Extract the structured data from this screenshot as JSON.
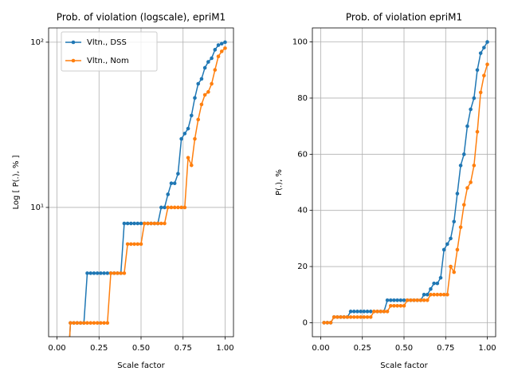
{
  "chart_data": [
    {
      "type": "line",
      "title": "Prob. of violation (logscale), epriM1",
      "x_label": "Scale factor",
      "y_label": "Log [ P(.), % ]",
      "log_scale": true,
      "grid": true,
      "legend": "upper left",
      "x": [
        0.02,
        0.04,
        0.06,
        0.08,
        0.1,
        0.12,
        0.14,
        0.16,
        0.18,
        0.2,
        0.22,
        0.24,
        0.26,
        0.28,
        0.3,
        0.32,
        0.34,
        0.36,
        0.38,
        0.4,
        0.42,
        0.44,
        0.46,
        0.48,
        0.5,
        0.52,
        0.54,
        0.56,
        0.58,
        0.6,
        0.62,
        0.64,
        0.66,
        0.68,
        0.7,
        0.72,
        0.74,
        0.76,
        0.78,
        0.8,
        0.82,
        0.84,
        0.86,
        0.88,
        0.9,
        0.92,
        0.94,
        0.96,
        0.98,
        1.0
      ],
      "series": [
        {
          "name": "Vltn., DSS",
          "color": "#1f77b4",
          "values": [
            0,
            0,
            0,
            2,
            2,
            2,
            2,
            2,
            4,
            4,
            4,
            4,
            4,
            4,
            4,
            4,
            4,
            4,
            4,
            8,
            8,
            8,
            8,
            8,
            8,
            8,
            8,
            8,
            8,
            8,
            10,
            10,
            12,
            14,
            14,
            16,
            26,
            28,
            30,
            36,
            46,
            56,
            60,
            70,
            76,
            80,
            90,
            96,
            98,
            100
          ]
        },
        {
          "name": "Vltn., Nom",
          "color": "#ff7f0e",
          "values": [
            0,
            0,
            0,
            2,
            2,
            2,
            2,
            2,
            2,
            2,
            2,
            2,
            2,
            2,
            2,
            4,
            4,
            4,
            4,
            4,
            6,
            6,
            6,
            6,
            6,
            8,
            8,
            8,
            8,
            8,
            8,
            8,
            10,
            10,
            10,
            10,
            10,
            10,
            20,
            18,
            26,
            34,
            42,
            48,
            50,
            56,
            68,
            82,
            88,
            92
          ]
        }
      ],
      "xlim": [
        -0.05,
        1.05
      ],
      "xticks": [
        {
          "value": 0,
          "label": "0.00"
        },
        {
          "value": 0.25,
          "label": "0.25"
        },
        {
          "value": 0.5,
          "label": "0.50"
        },
        {
          "value": 0.75,
          "label": "0.75"
        },
        {
          "value": 1,
          "label": "1.00"
        }
      ],
      "ylim": [
        1.65,
        122
      ],
      "yticks": [
        {
          "value": 10,
          "label": "10¹"
        },
        {
          "value": 100,
          "label": "10²"
        }
      ]
    },
    {
      "type": "line",
      "title": "Prob. of violation epriM1",
      "x_label": "Scale factor",
      "y_label": "P(.), %",
      "log_scale": false,
      "grid": true,
      "x": [
        0.02,
        0.04,
        0.06,
        0.08,
        0.1,
        0.12,
        0.14,
        0.16,
        0.18,
        0.2,
        0.22,
        0.24,
        0.26,
        0.28,
        0.3,
        0.32,
        0.34,
        0.36,
        0.38,
        0.4,
        0.42,
        0.44,
        0.46,
        0.48,
        0.5,
        0.52,
        0.54,
        0.56,
        0.58,
        0.6,
        0.62,
        0.64,
        0.66,
        0.68,
        0.7,
        0.72,
        0.74,
        0.76,
        0.78,
        0.8,
        0.82,
        0.84,
        0.86,
        0.88,
        0.9,
        0.92,
        0.94,
        0.96,
        0.98,
        1.0
      ],
      "series": [
        {
          "name": "Vltn., DSS",
          "color": "#1f77b4",
          "values": [
            0,
            0,
            0,
            2,
            2,
            2,
            2,
            2,
            4,
            4,
            4,
            4,
            4,
            4,
            4,
            4,
            4,
            4,
            4,
            8,
            8,
            8,
            8,
            8,
            8,
            8,
            8,
            8,
            8,
            8,
            10,
            10,
            12,
            14,
            14,
            16,
            26,
            28,
            30,
            36,
            46,
            56,
            60,
            70,
            76,
            80,
            90,
            96,
            98,
            100
          ]
        },
        {
          "name": "Vltn., Nom",
          "color": "#ff7f0e",
          "values": [
            0,
            0,
            0,
            2,
            2,
            2,
            2,
            2,
            2,
            2,
            2,
            2,
            2,
            2,
            2,
            4,
            4,
            4,
            4,
            4,
            6,
            6,
            6,
            6,
            6,
            8,
            8,
            8,
            8,
            8,
            8,
            8,
            10,
            10,
            10,
            10,
            10,
            10,
            20,
            18,
            26,
            34,
            42,
            48,
            50,
            56,
            68,
            82,
            88,
            92
          ]
        }
      ],
      "xlim": [
        -0.05,
        1.05
      ],
      "xticks": [
        {
          "value": 0,
          "label": "0.00"
        },
        {
          "value": 0.25,
          "label": "0.25"
        },
        {
          "value": 0.5,
          "label": "0.50"
        },
        {
          "value": 0.75,
          "label": "0.75"
        },
        {
          "value": 1,
          "label": "1.00"
        }
      ],
      "ylim": [
        -5,
        105
      ],
      "yticks": [
        0,
        20,
        40,
        60,
        80,
        100
      ]
    }
  ]
}
